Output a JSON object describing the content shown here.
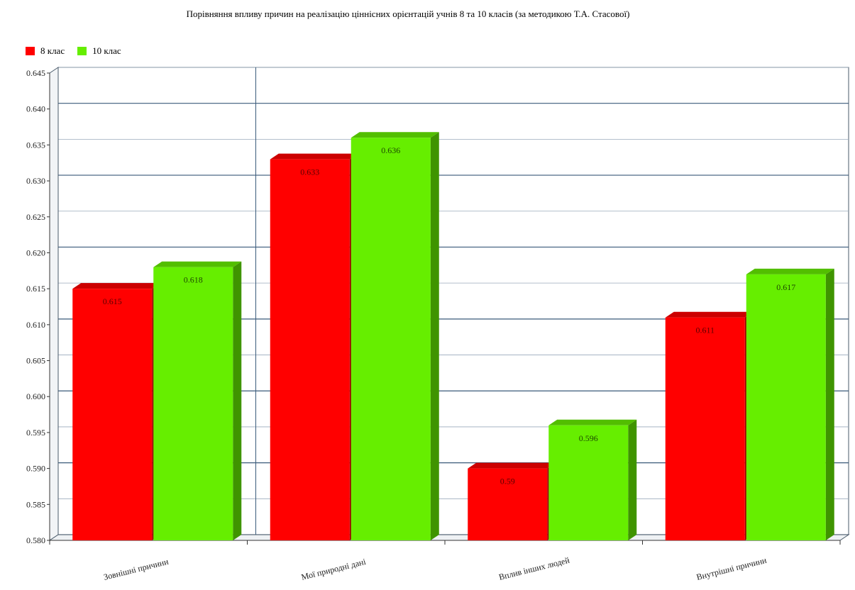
{
  "chart_data": {
    "type": "bar",
    "title": "Порівняння впливу причин на реалізацію ціннісних орієнтацій учнів 8 та 10 класів (за методикою Т.А. Стасової)",
    "categories": [
      "Зовнішні причини",
      "Мої природні дані",
      "Вплив інших людей",
      "Внутрішні причини"
    ],
    "series": [
      {
        "name": "8 клас",
        "values": [
          0.615,
          0.633,
          0.59,
          0.611
        ],
        "color": "#ff0000"
      },
      {
        "name": "10 клас",
        "values": [
          0.618,
          0.636,
          0.596,
          0.617
        ],
        "color": "#66ee00"
      }
    ],
    "data_labels": [
      [
        "0.615",
        "0.633",
        "0.59",
        "0.611"
      ],
      [
        "0.618",
        "0.636",
        "0.596",
        "0.617"
      ]
    ],
    "ylim": [
      0.58,
      0.645
    ],
    "yticks": [
      "0.580",
      "0.585",
      "0.590",
      "0.595",
      "0.600",
      "0.605",
      "0.610",
      "0.615",
      "0.620",
      "0.625",
      "0.630",
      "0.635",
      "0.640",
      "0.645"
    ],
    "xlabel": "",
    "ylabel": "",
    "grid": true,
    "legend_position": "top-left",
    "style": "3d-bar"
  }
}
